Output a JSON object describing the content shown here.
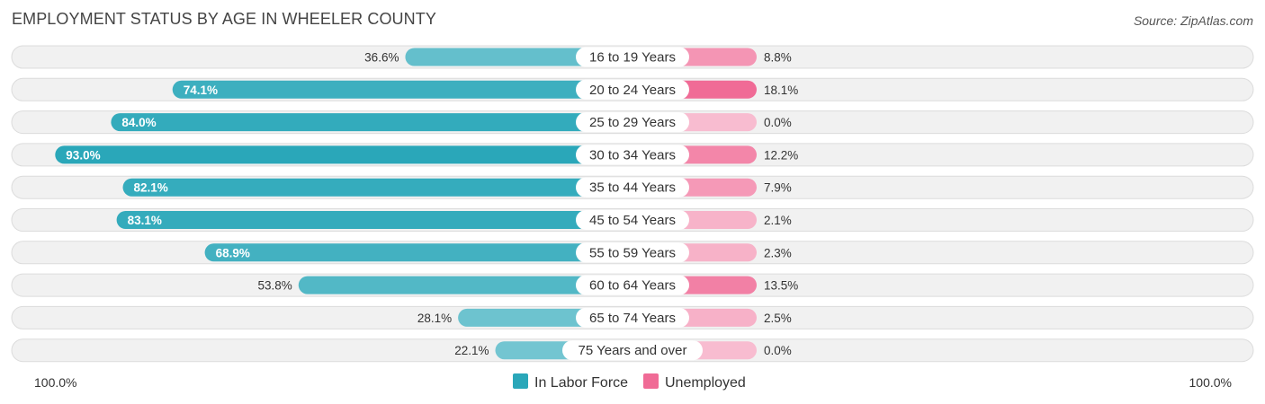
{
  "chart_data": {
    "type": "bar",
    "orientation": "horizontal-diverging",
    "title": "EMPLOYMENT STATUS BY AGE IN WHEELER COUNTY",
    "source": "Source: ZipAtlas.com",
    "categories": [
      "16 to 19 Years",
      "20 to 24 Years",
      "25 to 29 Years",
      "30 to 34 Years",
      "35 to 44 Years",
      "45 to 54 Years",
      "55 to 59 Years",
      "60 to 64 Years",
      "65 to 74 Years",
      "75 Years and over"
    ],
    "series": [
      {
        "name": "In Labor Force",
        "side": "left",
        "color": "#2aa7b9",
        "values": [
          36.6,
          74.1,
          84.0,
          93.0,
          82.1,
          83.1,
          68.9,
          53.8,
          28.1,
          22.1
        ],
        "labels": [
          "36.6%",
          "74.1%",
          "84.0%",
          "93.0%",
          "82.1%",
          "83.1%",
          "68.9%",
          "53.8%",
          "28.1%",
          "22.1%"
        ]
      },
      {
        "name": "Unemployed",
        "side": "right",
        "color": "#f06b96",
        "values": [
          8.8,
          18.1,
          0.0,
          12.2,
          7.9,
          2.1,
          2.3,
          13.5,
          2.5,
          0.0
        ],
        "labels": [
          "8.8%",
          "18.1%",
          "0.0%",
          "12.2%",
          "7.9%",
          "2.1%",
          "2.3%",
          "13.5%",
          "2.5%",
          "0.0%"
        ]
      }
    ],
    "axis": {
      "min": 0,
      "max": 100,
      "left_label": "100.0%",
      "right_label": "100.0%"
    },
    "legend": {
      "placement": "bottom-center",
      "items": [
        "In Labor Force",
        "Unemployed"
      ]
    }
  }
}
